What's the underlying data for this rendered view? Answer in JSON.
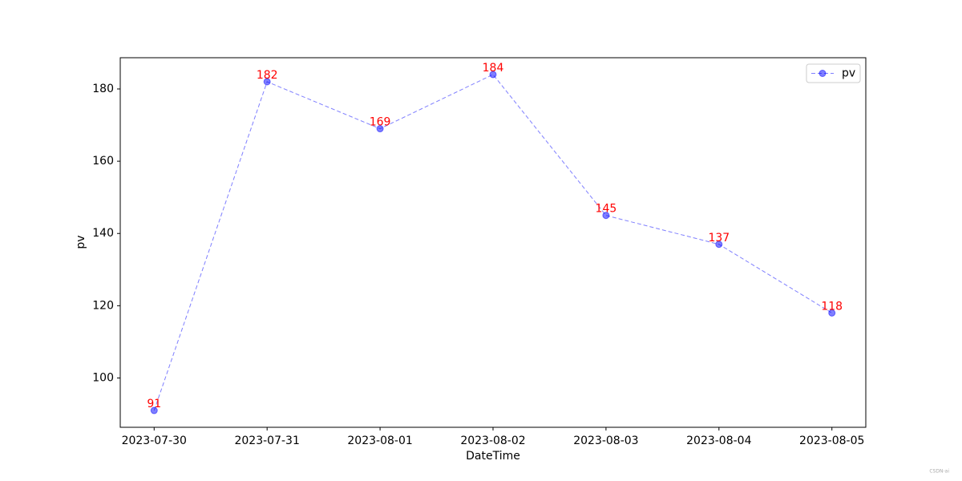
{
  "chart_data": {
    "type": "line",
    "xlabel": "DateTime",
    "ylabel": "pv",
    "categories": [
      "2023-07-30",
      "2023-07-31",
      "2023-08-01",
      "2023-08-02",
      "2023-08-03",
      "2023-08-04",
      "2023-08-05"
    ],
    "series": [
      {
        "name": "pv",
        "color": "#0000ff",
        "values": [
          91,
          182,
          169,
          184,
          145,
          137,
          118
        ]
      }
    ],
    "data_label_color": "#ff0000",
    "ylim": [
      86.35,
      188.65
    ],
    "yticks": [
      100,
      120,
      140,
      160,
      180
    ],
    "grid": false,
    "legend": "upper right",
    "line_style": "dashed",
    "marker": "circle",
    "watermark": "CSDN-ai"
  }
}
